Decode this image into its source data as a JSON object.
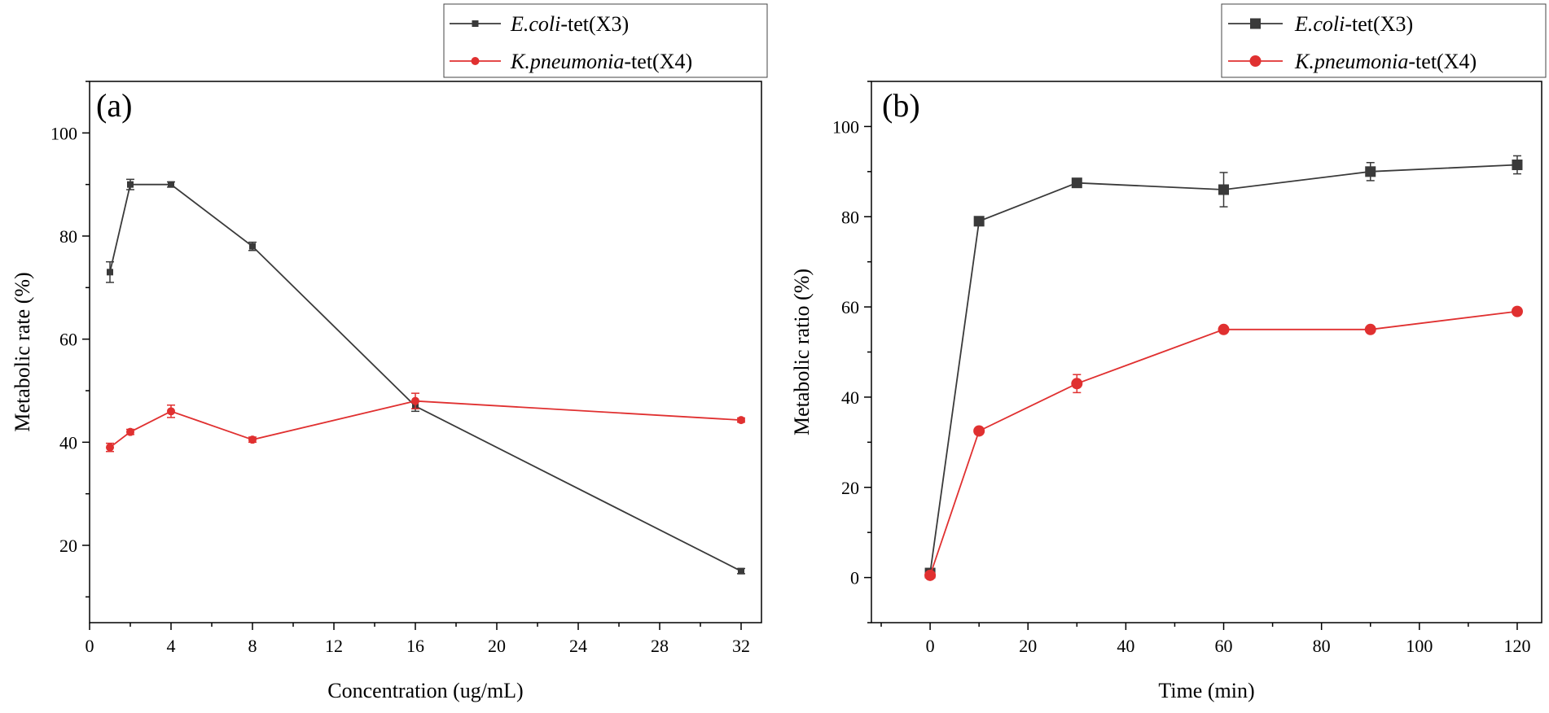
{
  "chart_data": [
    {
      "type": "line",
      "panel_label": "(a)",
      "xlabel": "Concentration (ug/mL)",
      "ylabel": "Metabolic rate (%)",
      "xlim": [
        0,
        33
      ],
      "ylim": [
        5,
        110
      ],
      "xticks": [
        0,
        4,
        8,
        12,
        16,
        20,
        24,
        28,
        32
      ],
      "yticks": [
        20,
        40,
        60,
        80,
        100
      ],
      "x": [
        1,
        2,
        4,
        8,
        16,
        32
      ],
      "series": [
        {
          "name_italic": "E.coli",
          "name_rest": "-tet(X3)",
          "color": "#3a3a3a",
          "marker": "square",
          "values": [
            73,
            90,
            90,
            78,
            47,
            15
          ],
          "errors": [
            2,
            1,
            0.5,
            0.8,
            1,
            0.5
          ]
        },
        {
          "name_italic": "K.pneumonia",
          "name_rest": "-tet(X4)",
          "color": "#e03030",
          "marker": "circle",
          "values": [
            39,
            42,
            46,
            40.5,
            48,
            44.3
          ],
          "errors": [
            0.8,
            0.5,
            1.2,
            0.5,
            1.5,
            0.4
          ]
        }
      ]
    },
    {
      "type": "line",
      "panel_label": "(b)",
      "xlabel": "Time (min)",
      "ylabel": "Metabolic ratio (%)",
      "xlim": [
        -12,
        125
      ],
      "ylim": [
        -10,
        110
      ],
      "xticks": [
        0,
        20,
        40,
        60,
        80,
        100,
        120
      ],
      "yticks": [
        0,
        20,
        40,
        60,
        80,
        100
      ],
      "x": [
        0,
        10,
        30,
        60,
        90,
        120
      ],
      "series": [
        {
          "name_italic": "E.coli",
          "name_rest": "-tet(X3)",
          "color": "#3a3a3a",
          "marker": "square",
          "values": [
            1,
            79,
            87.5,
            86,
            90,
            91.5
          ],
          "errors": [
            0.5,
            0.5,
            0.8,
            3.8,
            2,
            2
          ]
        },
        {
          "name_italic": "K.pneumonia",
          "name_rest": "-tet(X4)",
          "color": "#e03030",
          "marker": "circle",
          "values": [
            0.5,
            32.5,
            43,
            55,
            55,
            59
          ],
          "errors": [
            0.3,
            0.5,
            2,
            0.3,
            0.3,
            0.5
          ]
        }
      ]
    }
  ]
}
